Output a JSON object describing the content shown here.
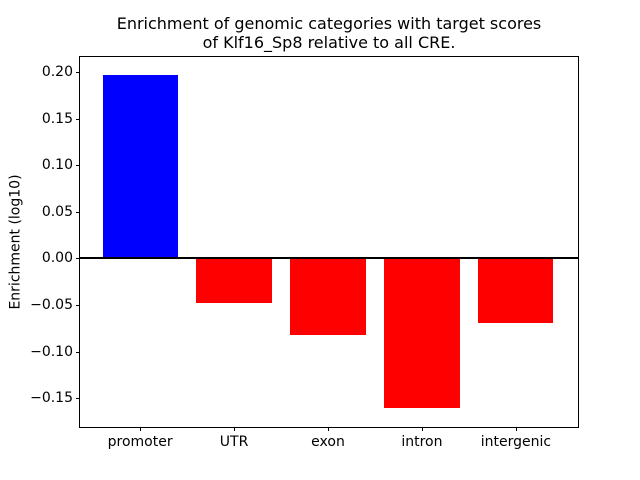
{
  "figure": {
    "background": "#ffffff",
    "axis_color": "#000000",
    "text_color": "#000000"
  },
  "chart_data": {
    "type": "bar",
    "title": "Enrichment of genomic categories with target scores\nof Klf16_Sp8 relative to all CRE.",
    "title_lines": [
      "Enrichment of genomic categories with target scores",
      "of Klf16_Sp8 relative to all CRE."
    ],
    "categories": [
      "promoter",
      "UTR",
      "exon",
      "intron",
      "intergenic"
    ],
    "values": [
      0.197,
      -0.048,
      -0.082,
      -0.161,
      -0.069
    ],
    "bar_colors": [
      "#0000ff",
      "#ff0000",
      "#ff0000",
      "#ff0000",
      "#ff0000"
    ],
    "positive_color": "#0000ff",
    "negative_color": "#ff0000",
    "xlabel": "",
    "ylabel": "Enrichment (log10)",
    "ylim": [
      -0.181,
      0.216
    ],
    "yticks": [
      0.2,
      0.15,
      0.1,
      0.05,
      0.0,
      -0.05,
      -0.1,
      -0.15
    ],
    "ytick_labels": [
      "0.20",
      "0.15",
      "0.10",
      "0.05",
      "0.00",
      "−0.05",
      "−0.10",
      "−0.15"
    ],
    "zero_line": {
      "value": 0,
      "color": "#000000",
      "thickness_px": 2
    },
    "bar_width_fraction": 0.8,
    "grid": false,
    "legend": null
  }
}
